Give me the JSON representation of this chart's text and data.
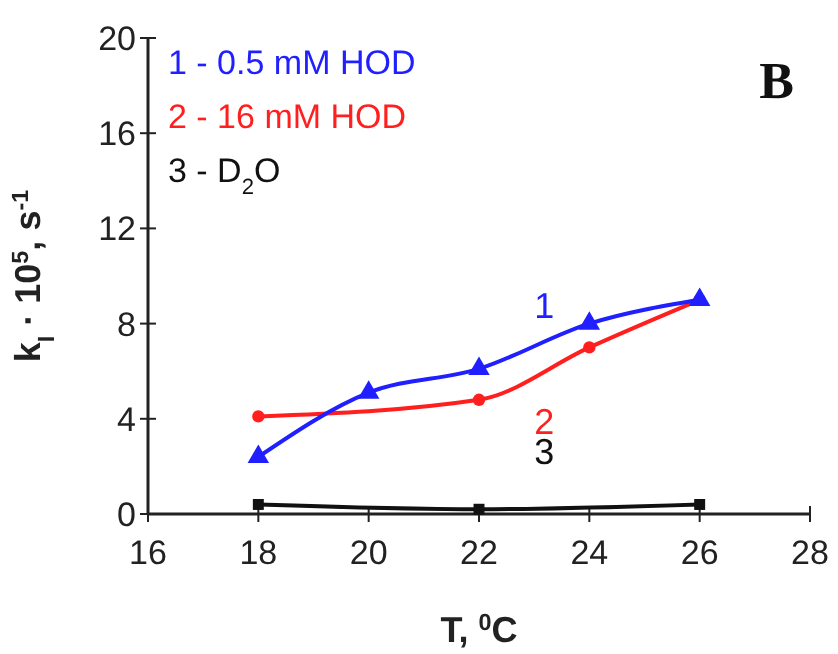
{
  "chart_data": {
    "type": "line",
    "xlabel": "T, $^{0}$C",
    "ylabel": "k$_{I}$ · 10$^{5}$, s$^{-1}$",
    "xlim": [
      16,
      28
    ],
    "xticks": [
      16,
      18,
      20,
      22,
      24,
      26,
      28
    ],
    "ylim": [
      0,
      20
    ],
    "yticks": [
      0,
      4,
      8,
      12,
      16,
      20
    ],
    "legend": "top left",
    "grid": false,
    "series": [
      {
        "name": "1 - 0.5 mM HOD",
        "color": "#1f1fff",
        "marker": "triangle",
        "x": [
          18,
          20,
          22,
          24,
          26
        ],
        "values": [
          2.4,
          5.1,
          6.1,
          8.0,
          9.0
        ]
      },
      {
        "name": "2 - 16 mM HOD",
        "color": "#ff1f1f",
        "marker": "circle",
        "x": [
          18,
          22,
          24,
          26
        ],
        "values": [
          4.1,
          4.8,
          7.0,
          9.0
        ]
      },
      {
        "name": "3 - D$_{2}$O",
        "color": "#111111",
        "marker": "square",
        "x": [
          18,
          22,
          26
        ],
        "values": [
          0.4,
          0.2,
          0.4
        ]
      }
    ],
    "annotations": [
      "B",
      "1",
      "2",
      "3"
    ]
  }
}
